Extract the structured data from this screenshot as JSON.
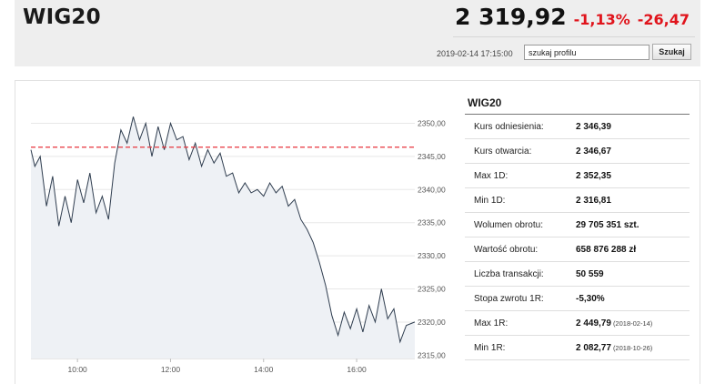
{
  "header": {
    "title": "WIG20",
    "price": "2 319,92",
    "change_pct": "-1,13%",
    "change_abs": "-26,47",
    "timestamp": "2019-02-14 17:15:00",
    "search_value": "szukaj profilu",
    "search_button": "Szukaj"
  },
  "colors": {
    "negative": "#e0141c",
    "reference_line": "#e8343c",
    "line": "#2f3d4f",
    "area": "#eef1f5"
  },
  "chart_data": {
    "type": "area",
    "title": "",
    "xlabel": "",
    "ylabel": "",
    "x_ticks": [
      "10:00",
      "12:00",
      "14:00",
      "16:00"
    ],
    "y_ticks": [
      "2350,00",
      "2345,00",
      "2340,00",
      "2335,00",
      "2330,00",
      "2325,00",
      "2320,00",
      "2315,00"
    ],
    "y_range": [
      2314.5,
      2353.5
    ],
    "x_range": [
      "09:00",
      "17:15"
    ],
    "reference_line": 2346.39,
    "grid": "horizontal",
    "series": [
      {
        "x": [
          "09:00",
          "09:05",
          "09:12",
          "09:20",
          "09:28",
          "09:36",
          "09:44",
          "09:52",
          "10:00",
          "10:08",
          "10:16",
          "10:24",
          "10:32",
          "10:40",
          "10:48",
          "10:56",
          "11:04",
          "11:12",
          "11:20",
          "11:28",
          "11:36",
          "11:44",
          "11:52",
          "12:00",
          "12:08",
          "12:16",
          "12:24",
          "12:32",
          "12:40",
          "12:48",
          "12:56",
          "13:04",
          "13:12",
          "13:20",
          "13:28",
          "13:36",
          "13:44",
          "13:52",
          "14:00",
          "14:08",
          "14:16",
          "14:24",
          "14:32",
          "14:40",
          "14:48",
          "14:56",
          "15:04",
          "15:12",
          "15:20",
          "15:28",
          "15:36",
          "15:44",
          "15:52",
          "16:00",
          "16:08",
          "16:16",
          "16:24",
          "16:32",
          "16:40",
          "16:48",
          "16:56",
          "17:04",
          "17:15"
        ],
        "values": [
          2346.0,
          2343.5,
          2345.0,
          2337.5,
          2342.0,
          2334.5,
          2339.0,
          2335.0,
          2341.5,
          2338.0,
          2342.5,
          2336.5,
          2339.0,
          2335.5,
          2344.0,
          2349.0,
          2347.0,
          2351.0,
          2347.5,
          2350.0,
          2345.0,
          2349.5,
          2346.0,
          2350.0,
          2347.5,
          2348.0,
          2344.5,
          2347.0,
          2343.5,
          2346.0,
          2344.0,
          2345.5,
          2342.0,
          2342.5,
          2339.5,
          2341.0,
          2339.5,
          2340.0,
          2339.0,
          2341.0,
          2339.5,
          2340.5,
          2337.5,
          2338.5,
          2335.5,
          2334.0,
          2332.0,
          2329.0,
          2325.5,
          2321.0,
          2318.0,
          2321.5,
          2319.0,
          2322.0,
          2318.5,
          2322.5,
          2320.0,
          2325.0,
          2320.5,
          2322.0,
          2317.0,
          2319.5,
          2320.0
        ]
      }
    ]
  },
  "stats": {
    "title": "WIG20",
    "rows": [
      {
        "label": "Kurs odniesienia:",
        "value": "2 346,39",
        "date": ""
      },
      {
        "label": "Kurs otwarcia:",
        "value": "2 346,67",
        "date": ""
      },
      {
        "label": "Max 1D:",
        "value": "2 352,35",
        "date": ""
      },
      {
        "label": "Min 1D:",
        "value": "2 316,81",
        "date": ""
      },
      {
        "label": "Wolumen obrotu:",
        "value": "29 705 351 szt.",
        "date": ""
      },
      {
        "label": "Wartość obrotu:",
        "value": "658 876 288 zł",
        "date": ""
      },
      {
        "label": "Liczba transakcji:",
        "value": "50 559",
        "date": ""
      },
      {
        "label": "Stopa zwrotu 1R:",
        "value": "-5,30%",
        "date": ""
      },
      {
        "label": "Max 1R:",
        "value": "2 449,79",
        "date": "(2018-02-14)"
      },
      {
        "label": "Min 1R:",
        "value": "2 082,77",
        "date": "(2018-10-26)"
      }
    ]
  }
}
